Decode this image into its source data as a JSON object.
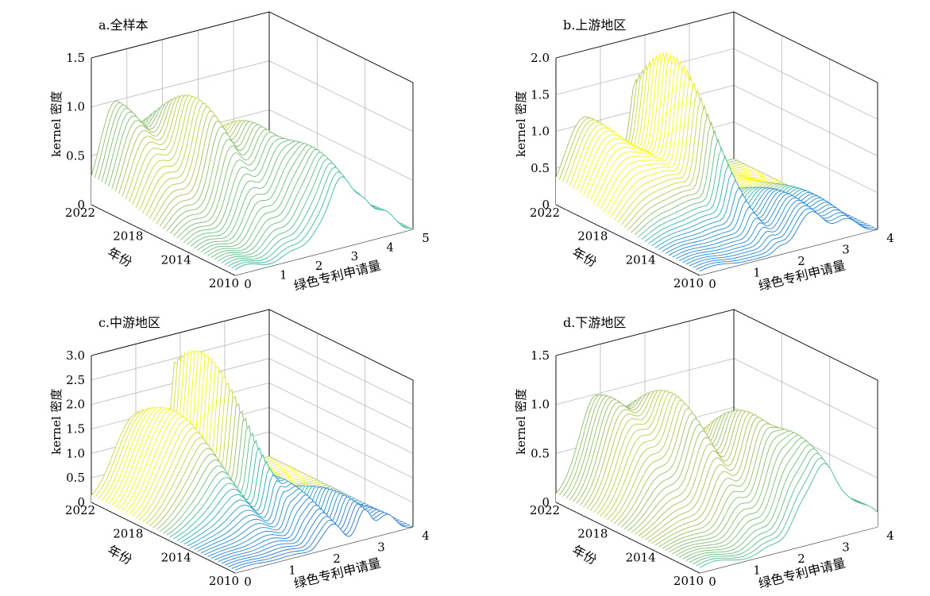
{
  "chart_data": [
    {
      "type": "surface",
      "title": "a.全样本",
      "xlabel": "绿色专利申请量",
      "ylabel": "年份",
      "zlabel": "kernel 密度",
      "xlim": [
        0,
        5
      ],
      "xticks": [
        "0",
        "1",
        "2",
        "3",
        "4",
        "5"
      ],
      "ylim": [
        2010,
        2022
      ],
      "yticks": [
        "2010",
        "2014",
        "2018",
        "2022"
      ],
      "zlim": [
        0,
        1.5
      ],
      "zticks": [
        "0",
        "0.5",
        "1.0",
        "1.5"
      ],
      "colormap": [
        "#352a87",
        "#1f7fd6",
        "#2eb7a2",
        "#a5be5b",
        "#f9fb0e"
      ],
      "peaks": [
        {
          "x": 0.7,
          "w": 0.42,
          "year": 2022,
          "h": 0.95
        },
        {
          "x": 1.6,
          "w": 0.3,
          "year": 2018,
          "h": 1.1
        },
        {
          "x": 2.4,
          "w": 0.32,
          "year": 2016,
          "h": 0.9
        },
        {
          "x": 3.0,
          "w": 0.3,
          "year": 2012,
          "h": 0.78
        },
        {
          "x": 3.6,
          "w": 0.25,
          "year": 2011,
          "h": 0.35
        },
        {
          "x": 4.2,
          "w": 0.3,
          "year": 2010,
          "h": 0.25
        }
      ]
    },
    {
      "type": "surface",
      "title": "b.上游地区",
      "xlabel": "绿色专利申请量",
      "ylabel": "年份",
      "zlabel": "kernel 密度",
      "xlim": [
        0,
        4
      ],
      "xticks": [
        "0",
        "1",
        "2",
        "3",
        "4"
      ],
      "ylim": [
        2010,
        2022
      ],
      "yticks": [
        "2010",
        "2014",
        "2018",
        "2022"
      ],
      "zlim": [
        0,
        2.0
      ],
      "zticks": [
        "0",
        "0.5",
        "1.0",
        "1.5",
        "2.0"
      ],
      "colormap": [
        "#352a87",
        "#1f7fd6",
        "#2eb7a2",
        "#a5be5b",
        "#f9fb0e"
      ],
      "peaks": [
        {
          "x": 0.6,
          "w": 0.4,
          "year": 2022,
          "h": 0.95
        },
        {
          "x": 1.4,
          "w": 0.45,
          "year": 2019,
          "h": 0.6
        },
        {
          "x": 1.8,
          "w": 0.12,
          "year": 2019,
          "h": 1.6
        },
        {
          "x": 2.5,
          "w": 0.3,
          "year": 2012,
          "h": 0.55
        },
        {
          "x": 3.3,
          "w": 0.25,
          "year": 2013,
          "h": 0.35
        }
      ]
    },
    {
      "type": "surface",
      "title": "c.中游地区",
      "xlabel": "绿色专利申请量",
      "ylabel": "年份",
      "zlabel": "kernel 密度",
      "xlim": [
        0,
        4
      ],
      "xticks": [
        "0",
        "1",
        "2",
        "3",
        "4"
      ],
      "ylim": [
        2010,
        2022
      ],
      "yticks": [
        "2010",
        "2014",
        "2018",
        "2022"
      ],
      "zlim": [
        0,
        3.0
      ],
      "zticks": [
        "0",
        "0.5",
        "1.0",
        "1.5",
        "2.0",
        "2.5",
        "3.0"
      ],
      "colormap": [
        "#352a87",
        "#1f7fd6",
        "#2eb7a2",
        "#a5be5b",
        "#f9fb0e"
      ],
      "peaks": [
        {
          "x": 0.8,
          "w": 0.35,
          "year": 2021,
          "h": 1.2
        },
        {
          "x": 1.3,
          "w": 0.3,
          "year": 2019,
          "h": 1.4
        },
        {
          "x": 1.9,
          "w": 0.1,
          "year": 2020,
          "h": 2.75
        },
        {
          "x": 2.2,
          "w": 0.2,
          "year": 2014,
          "h": 0.9
        },
        {
          "x": 2.9,
          "w": 0.15,
          "year": 2012,
          "h": 0.7
        },
        {
          "x": 3.4,
          "w": 0.2,
          "year": 2010,
          "h": 0.4
        }
      ]
    },
    {
      "type": "surface",
      "title": "d.下游地区",
      "xlabel": "绿色专利申请量",
      "ylabel": "年份",
      "zlabel": "kernel 密度",
      "xlim": [
        0,
        4
      ],
      "xticks": [
        "0",
        "1",
        "2",
        "3",
        "4"
      ],
      "ylim": [
        2010,
        2022
      ],
      "yticks": [
        "2010",
        "2014",
        "2018",
        "2022"
      ],
      "zlim": [
        0,
        1.5
      ],
      "zticks": [
        "0",
        "0.5",
        "1.0",
        "1.5"
      ],
      "colormap": [
        "#352a87",
        "#1f7fd6",
        "#2eb7a2",
        "#a5be5b",
        "#f9fb0e"
      ],
      "peaks": [
        {
          "x": 0.9,
          "w": 0.35,
          "year": 2021,
          "h": 1.0
        },
        {
          "x": 1.6,
          "w": 0.25,
          "year": 2018,
          "h": 1.05
        },
        {
          "x": 2.3,
          "w": 0.25,
          "year": 2015,
          "h": 0.98
        },
        {
          "x": 2.8,
          "w": 0.25,
          "year": 2012,
          "h": 0.82
        },
        {
          "x": 3.3,
          "w": 0.25,
          "year": 2011,
          "h": 0.3
        },
        {
          "x": 3.8,
          "w": 0.25,
          "year": 2010,
          "h": 0.2
        }
      ]
    }
  ]
}
